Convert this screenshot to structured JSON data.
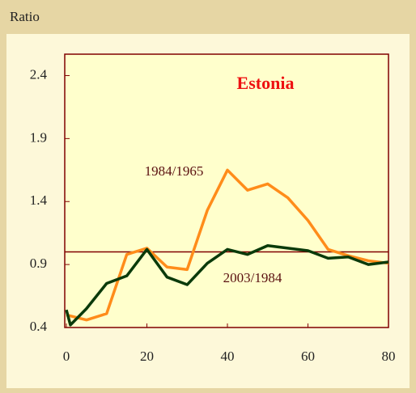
{
  "chart_data": {
    "type": "line",
    "title": "Estonia",
    "ylabel": "Ratio",
    "xlim": [
      0,
      80
    ],
    "xticks": [
      0,
      20,
      40,
      60,
      80
    ],
    "ylim": [
      0.4,
      2.57
    ],
    "yticks": [
      0.4,
      0.9,
      1.4,
      1.9,
      2.4
    ],
    "reference_line": 1.0,
    "reference_color": "#800000",
    "series": [
      {
        "name": "1984/1965",
        "color": "#ff8c1a",
        "x": [
          0,
          5,
          10,
          15,
          20,
          25,
          30,
          35,
          40,
          45,
          50,
          55,
          60,
          65,
          70,
          75,
          80
        ],
        "values": [
          0.5,
          0.46,
          0.51,
          0.98,
          1.03,
          0.88,
          0.86,
          1.33,
          1.65,
          1.49,
          1.54,
          1.43,
          1.25,
          1.02,
          0.97,
          0.93,
          0.91
        ]
      },
      {
        "name": "2003/1984",
        "color": "#0a3a0a",
        "x": [
          0,
          1,
          5,
          10,
          15,
          20,
          25,
          30,
          35,
          40,
          45,
          50,
          55,
          60,
          65,
          70,
          75,
          80
        ],
        "values": [
          0.54,
          0.42,
          0.55,
          0.75,
          0.81,
          1.02,
          0.8,
          0.74,
          0.91,
          1.02,
          0.98,
          1.05,
          1.03,
          1.01,
          0.95,
          0.96,
          0.9,
          0.92
        ]
      }
    ]
  }
}
